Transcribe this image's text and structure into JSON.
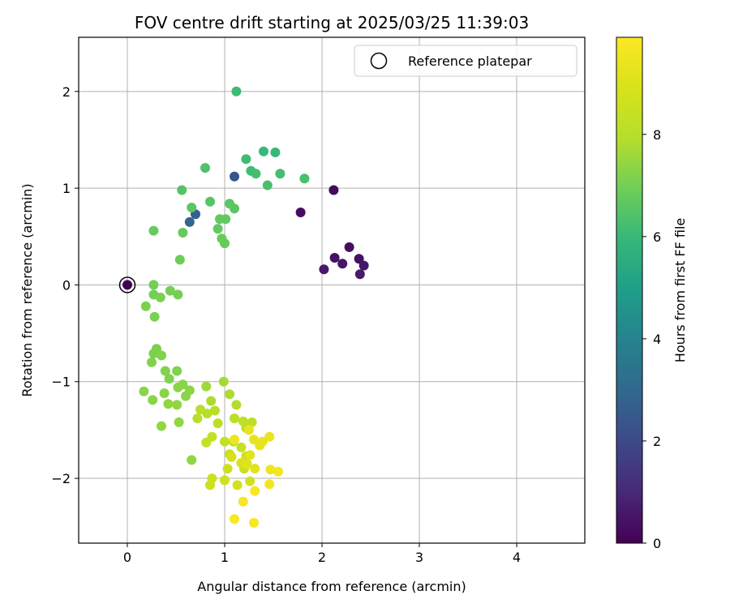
{
  "chart_data": {
    "type": "scatter",
    "title": "FOV centre drift starting at 2025/03/25 11:39:03",
    "xlabel": "Angular distance from reference (arcmin)",
    "ylabel": "Rotation from reference (arcmin)",
    "xlim": [
      -0.5,
      4.7
    ],
    "ylim": [
      -2.67,
      2.56
    ],
    "x_ticks": [
      0,
      1,
      2,
      3,
      4
    ],
    "x_tick_labels": [
      "0",
      "1",
      "2",
      "3",
      "4"
    ],
    "y_ticks": [
      -2,
      -1,
      0,
      1,
      2
    ],
    "y_tick_labels": [
      "−2",
      "−1",
      "0",
      "1",
      "2"
    ],
    "grid": true,
    "legend": {
      "placement": "top-right",
      "entries": [
        "Reference platepar"
      ]
    },
    "colorbar": {
      "label": "Hours from first FF file",
      "range": [
        0,
        9.9
      ],
      "ticks": [
        0,
        2,
        4,
        6,
        8
      ],
      "tick_labels": [
        "0",
        "2",
        "4",
        "6",
        "8"
      ],
      "colormap": "viridis"
    },
    "reference_point": {
      "x": 0,
      "y": 0
    },
    "points": [
      [
        0.0,
        0.0,
        0.0
      ],
      [
        2.12,
        0.98,
        0.2
      ],
      [
        1.78,
        0.75,
        0.3
      ],
      [
        2.28,
        0.39,
        0.35
      ],
      [
        2.38,
        0.27,
        0.4
      ],
      [
        2.13,
        0.28,
        0.45
      ],
      [
        2.21,
        0.22,
        0.5
      ],
      [
        2.43,
        0.2,
        0.55
      ],
      [
        2.02,
        0.16,
        0.6
      ],
      [
        2.39,
        0.11,
        0.65
      ],
      [
        1.1,
        1.12,
        2.4
      ],
      [
        0.7,
        0.73,
        2.7
      ],
      [
        0.64,
        0.65,
        2.9
      ],
      [
        1.12,
        2.0,
        6.1
      ],
      [
        1.4,
        1.38,
        6.0
      ],
      [
        1.52,
        1.37,
        6.0
      ],
      [
        1.22,
        1.3,
        6.1
      ],
      [
        1.27,
        1.18,
        6.1
      ],
      [
        1.32,
        1.15,
        6.2
      ],
      [
        1.57,
        1.15,
        6.2
      ],
      [
        1.82,
        1.1,
        6.3
      ],
      [
        1.44,
        1.03,
        6.3
      ],
      [
        0.8,
        1.21,
        6.4
      ],
      [
        0.56,
        0.98,
        6.5
      ],
      [
        0.85,
        0.86,
        6.5
      ],
      [
        1.05,
        0.84,
        6.6
      ],
      [
        1.1,
        0.79,
        6.6
      ],
      [
        0.66,
        0.8,
        6.6
      ],
      [
        0.95,
        0.68,
        6.7
      ],
      [
        1.01,
        0.68,
        6.7
      ],
      [
        0.93,
        0.58,
        6.7
      ],
      [
        0.27,
        0.56,
        6.8
      ],
      [
        0.57,
        0.54,
        6.8
      ],
      [
        0.97,
        0.48,
        6.8
      ],
      [
        1.0,
        0.43,
        6.8
      ],
      [
        0.54,
        0.26,
        6.9
      ],
      [
        0.27,
        0.0,
        7.0
      ],
      [
        0.44,
        -0.06,
        7.0
      ],
      [
        0.52,
        -0.1,
        7.0
      ],
      [
        0.27,
        -0.1,
        7.0
      ],
      [
        0.34,
        -0.13,
        7.1
      ],
      [
        0.19,
        -0.22,
        7.1
      ],
      [
        0.28,
        -0.33,
        7.1
      ],
      [
        0.3,
        -0.66,
        7.1
      ],
      [
        0.27,
        -0.71,
        7.1
      ],
      [
        0.35,
        -0.73,
        7.2
      ],
      [
        0.25,
        -0.8,
        7.2
      ],
      [
        0.39,
        -0.89,
        7.2
      ],
      [
        0.51,
        -0.89,
        7.2
      ],
      [
        0.43,
        -0.97,
        7.2
      ],
      [
        0.57,
        -1.03,
        7.3
      ],
      [
        0.52,
        -1.06,
        7.3
      ],
      [
        0.64,
        -1.09,
        7.3
      ],
      [
        0.38,
        -1.12,
        7.3
      ],
      [
        0.6,
        -1.15,
        7.3
      ],
      [
        0.17,
        -1.1,
        7.3
      ],
      [
        0.26,
        -1.19,
        7.3
      ],
      [
        0.42,
        -1.23,
        7.4
      ],
      [
        0.51,
        -1.24,
        7.4
      ],
      [
        0.53,
        -1.42,
        7.4
      ],
      [
        0.35,
        -1.46,
        7.4
      ],
      [
        0.66,
        -1.81,
        7.4
      ],
      [
        0.81,
        -1.05,
        7.6
      ],
      [
        0.99,
        -1.0,
        7.7
      ],
      [
        1.05,
        -1.13,
        7.8
      ],
      [
        0.86,
        -1.2,
        7.8
      ],
      [
        1.12,
        -1.24,
        7.9
      ],
      [
        0.75,
        -1.29,
        8.0
      ],
      [
        0.9,
        -1.3,
        8.0
      ],
      [
        0.82,
        -1.33,
        8.0
      ],
      [
        0.72,
        -1.38,
        8.0
      ],
      [
        0.93,
        -1.43,
        8.1
      ],
      [
        1.1,
        -1.38,
        8.1
      ],
      [
        1.19,
        -1.41,
        8.2
      ],
      [
        1.22,
        -1.48,
        8.2
      ],
      [
        1.28,
        -1.42,
        8.2
      ],
      [
        0.87,
        -1.57,
        8.3
      ],
      [
        1.0,
        -1.62,
        8.3
      ],
      [
        1.09,
        -1.62,
        8.3
      ],
      [
        0.81,
        -1.63,
        8.3
      ],
      [
        1.17,
        -1.68,
        8.4
      ],
      [
        1.05,
        -1.75,
        8.4
      ],
      [
        1.22,
        -1.77,
        8.5
      ],
      [
        1.03,
        -1.9,
        8.5
      ],
      [
        1.2,
        -1.9,
        8.5
      ],
      [
        0.87,
        -2.0,
        8.6
      ],
      [
        0.85,
        -2.07,
        8.6
      ],
      [
        1.0,
        -2.02,
        8.6
      ],
      [
        1.13,
        -2.07,
        8.7
      ],
      [
        1.26,
        -2.03,
        8.7
      ],
      [
        1.07,
        -1.78,
        8.9
      ],
      [
        1.17,
        -1.84,
        9.0
      ],
      [
        1.23,
        -1.85,
        9.1
      ],
      [
        1.31,
        -1.9,
        9.2
      ],
      [
        1.26,
        -1.76,
        9.2
      ],
      [
        1.3,
        -1.6,
        9.3
      ],
      [
        1.36,
        -1.66,
        9.3
      ],
      [
        1.39,
        -1.62,
        9.4
      ],
      [
        1.46,
        -1.57,
        9.4
      ],
      [
        1.25,
        -1.5,
        9.4
      ],
      [
        1.1,
        -1.6,
        9.5
      ],
      [
        1.47,
        -1.91,
        9.5
      ],
      [
        1.55,
        -1.93,
        9.6
      ],
      [
        1.46,
        -2.06,
        9.6
      ],
      [
        1.31,
        -2.13,
        9.7
      ],
      [
        1.19,
        -2.24,
        9.7
      ],
      [
        1.1,
        -2.42,
        9.8
      ],
      [
        1.3,
        -2.46,
        9.8
      ]
    ]
  }
}
